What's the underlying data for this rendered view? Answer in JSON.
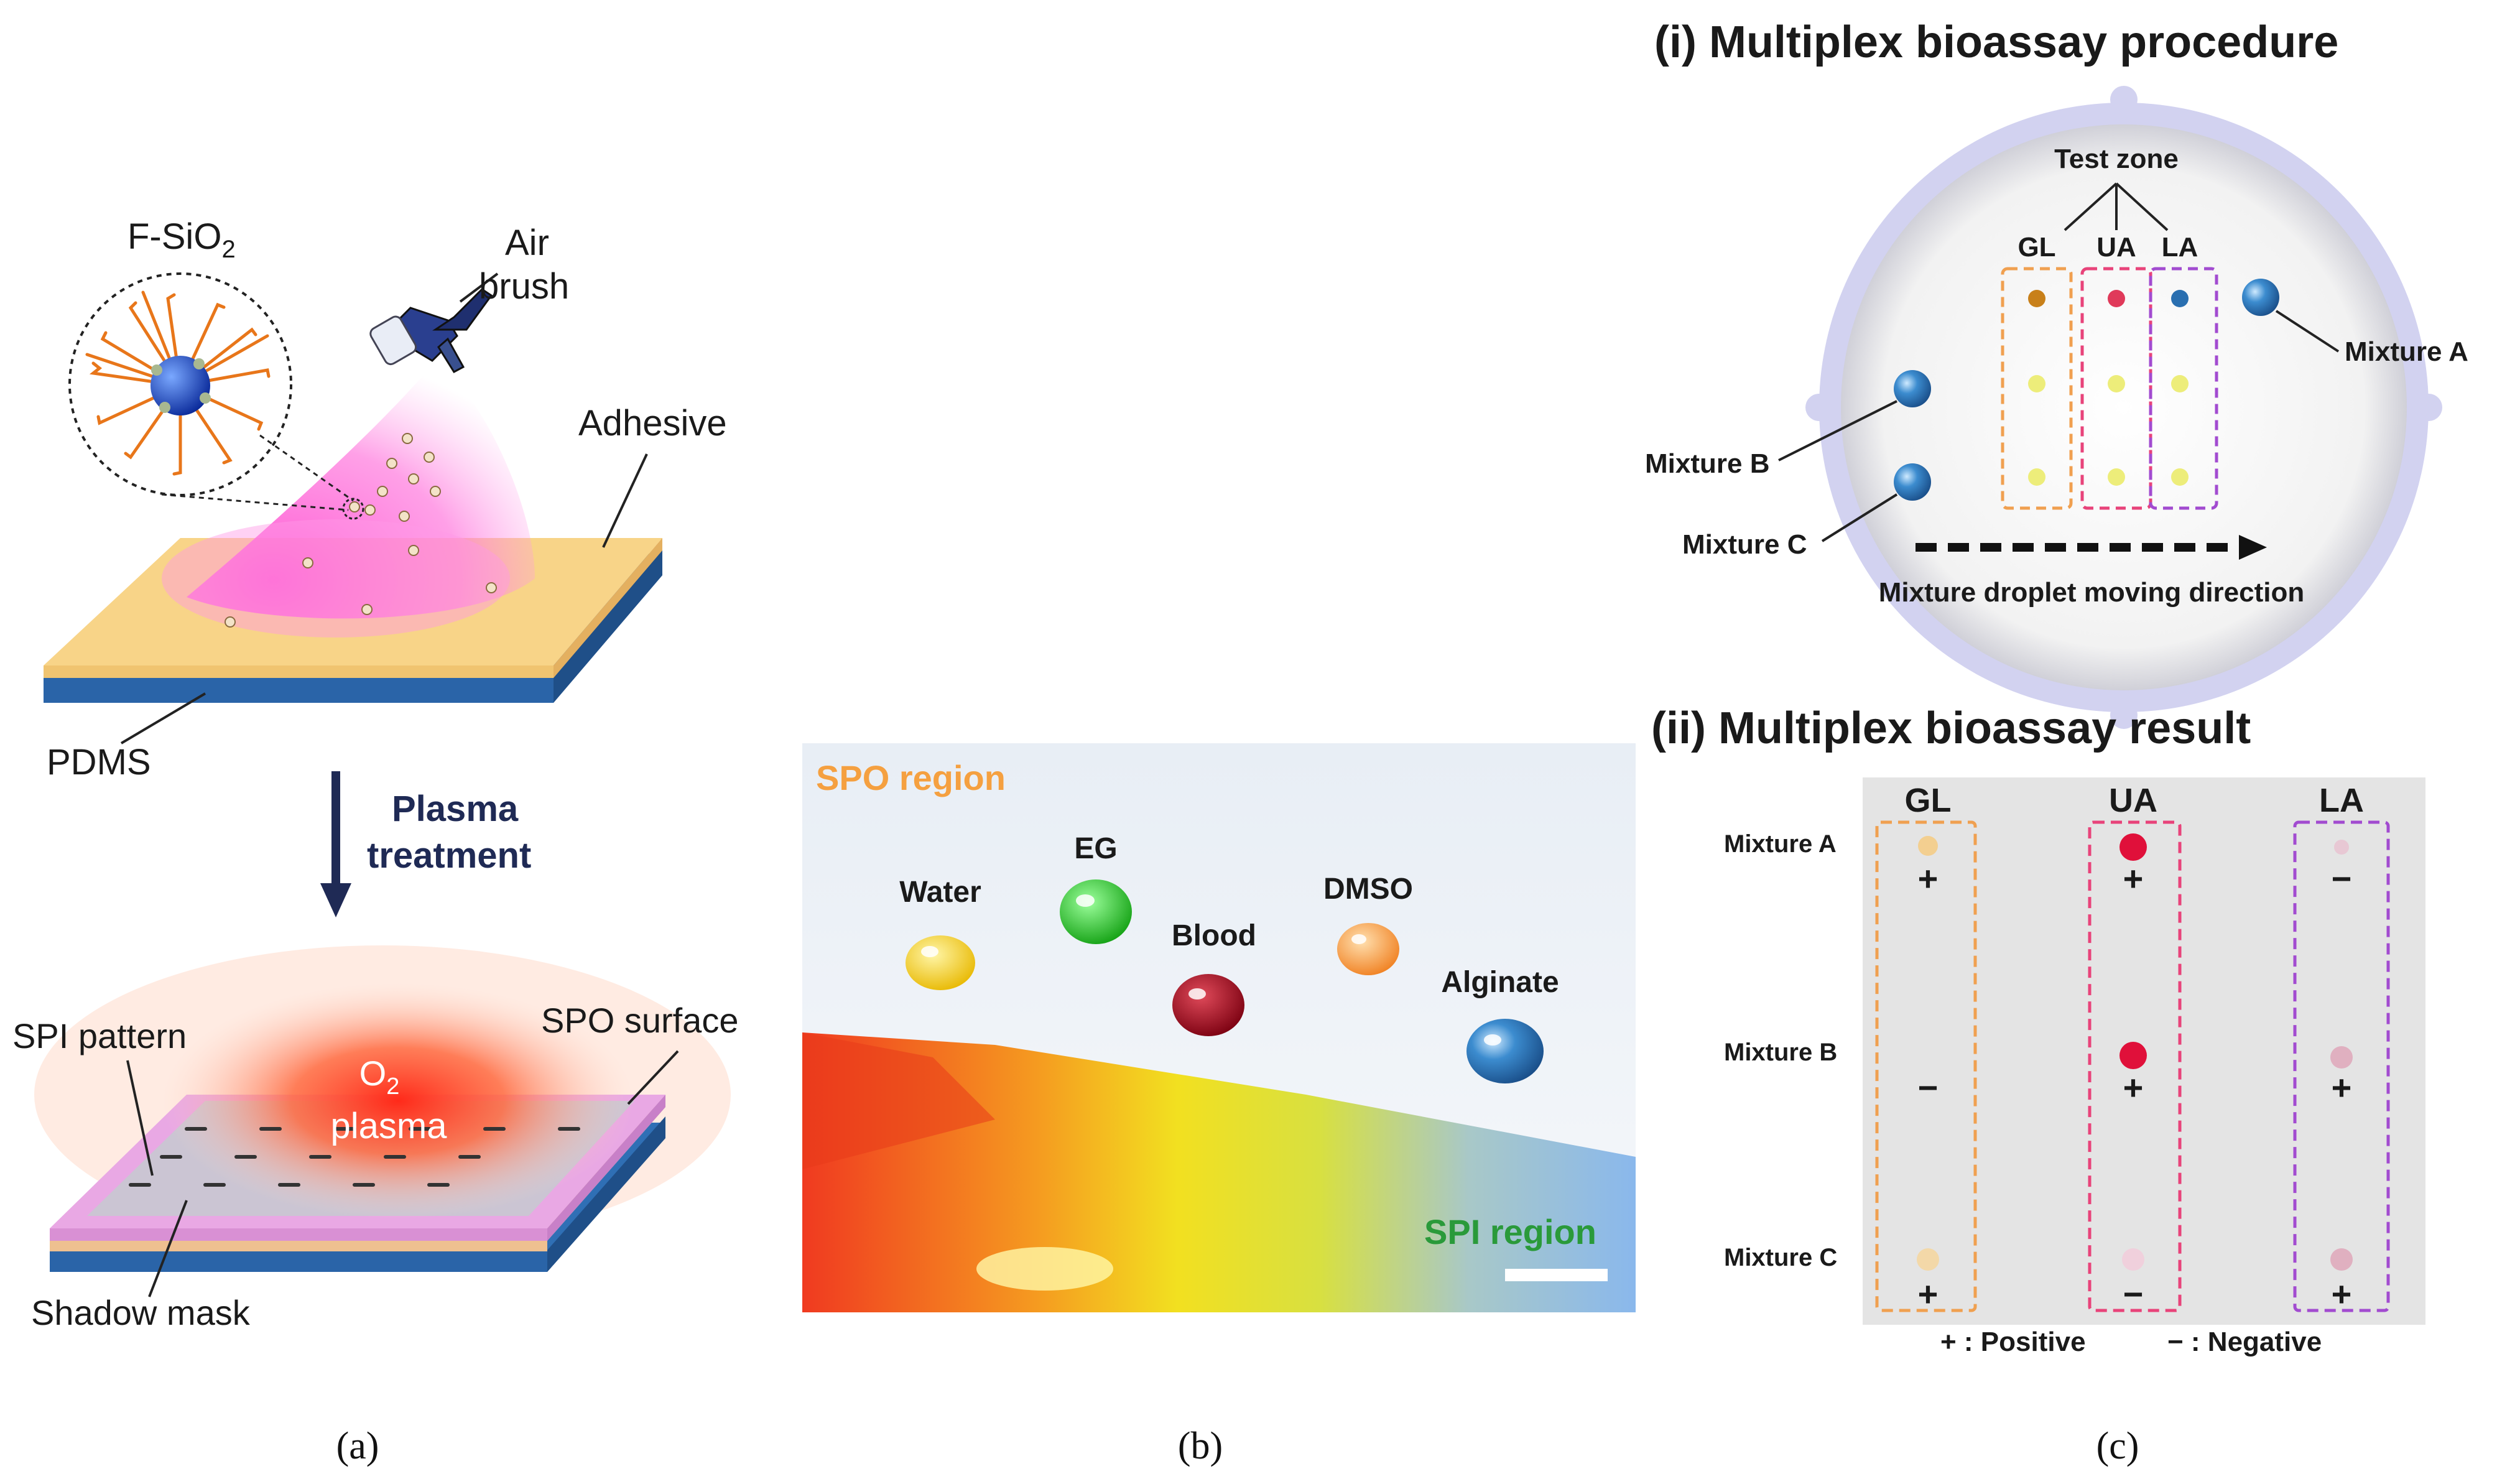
{
  "panel_a": {
    "fsio2_label": "F-SiO",
    "fsio2_sub": "2",
    "airbrush_line1": "Air",
    "airbrush_line2": "brush",
    "adhesive": "Adhesive",
    "pdms": "PDMS",
    "plasma_line1": "Plasma",
    "plasma_line2": "treatment",
    "spi_pattern": "SPI pattern",
    "spo_surface": "SPO surface",
    "o2_label": "O",
    "o2_sub": "2",
    "plasma_word": "plasma",
    "shadow_mask": "Shadow mask",
    "caption": "(a)"
  },
  "panel_b": {
    "spo_region": "SPO region",
    "spi_region": "SPI region",
    "droplets": [
      "Water",
      "EG",
      "Blood",
      "DMSO",
      "Alginate"
    ],
    "caption": "(b)"
  },
  "panel_c": {
    "title_i": "(i) Multiplex bioassay procedure",
    "test_zone": "Test zone",
    "zones": [
      "GL",
      "UA",
      "LA"
    ],
    "mixture_a": "Mixture A",
    "mixture_b": "Mixture B",
    "mixture_c": "Mixture C",
    "direction": "Mixture droplet moving direction",
    "title_ii": "(ii) Multiplex bioassay result",
    "result_cols": [
      "GL",
      "UA",
      "LA"
    ],
    "result_rows": [
      "Mixture A",
      "Mixture B",
      "Mixture C"
    ],
    "result_signs": [
      [
        "+",
        "+",
        "−"
      ],
      [
        "−",
        "+",
        "+"
      ],
      [
        "+",
        "−",
        "+"
      ]
    ],
    "legend_pos": "+ : Positive",
    "legend_neg": "− : Negative",
    "caption": "(c)"
  },
  "colors": {
    "gl": "#f0a050",
    "ua": "#e8437a",
    "la": "#a24bd0",
    "spo_text": "#f5a040",
    "spi_text": "#2a9a3a",
    "arrow": "#1f2a55"
  }
}
